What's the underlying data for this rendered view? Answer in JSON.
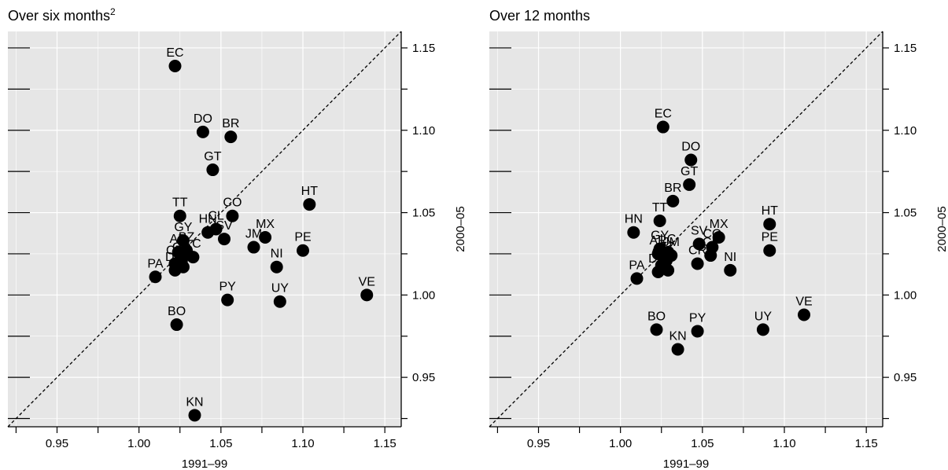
{
  "chart_data": [
    {
      "type": "scatter",
      "title": "Over six months",
      "title_superscript": "2",
      "xlabel": "1991–99",
      "ylabel": "2000–05",
      "xlim": [
        0.92,
        1.16
      ],
      "ylim": [
        0.92,
        1.16
      ],
      "xticks": [
        "0.95",
        "1.00",
        "1.05",
        "1.10",
        "1.15"
      ],
      "yticks": [
        "0.95",
        "1.00",
        "1.05",
        "1.10",
        "1.15"
      ],
      "grid": true,
      "diagonal": "dashed 45-degree line",
      "background": "#e6e6e6",
      "point_color": "#000000",
      "points": [
        {
          "label": "EC",
          "x": 1.022,
          "y": 1.139
        },
        {
          "label": "DO",
          "x": 1.039,
          "y": 1.099
        },
        {
          "label": "BR",
          "x": 1.056,
          "y": 1.096
        },
        {
          "label": "GT",
          "x": 1.045,
          "y": 1.076
        },
        {
          "label": "TT",
          "x": 1.025,
          "y": 1.048
        },
        {
          "label": "CO",
          "x": 1.057,
          "y": 1.048
        },
        {
          "label": "HT",
          "x": 1.104,
          "y": 1.055
        },
        {
          "label": "CL",
          "x": 1.047,
          "y": 1.04
        },
        {
          "label": "HN",
          "x": 1.042,
          "y": 1.038
        },
        {
          "label": "SV",
          "x": 1.052,
          "y": 1.034
        },
        {
          "label": "MX",
          "x": 1.077,
          "y": 1.035
        },
        {
          "label": "JM",
          "x": 1.07,
          "y": 1.029
        },
        {
          "label": "PE",
          "x": 1.1,
          "y": 1.027
        },
        {
          "label": "NI",
          "x": 1.084,
          "y": 1.017
        },
        {
          "label": "GY",
          "x": 1.027,
          "y": 1.033
        },
        {
          "label": "AR",
          "x": 1.024,
          "y": 1.026
        },
        {
          "label": "BZ",
          "x": 1.029,
          "y": 1.027
        },
        {
          "label": "LC",
          "x": 1.033,
          "y": 1.023
        },
        {
          "label": "CR",
          "x": 1.022,
          "y": 1.019
        },
        {
          "label": "GD",
          "x": 1.026,
          "y": 1.021
        },
        {
          "label": "PA",
          "x": 1.01,
          "y": 1.011
        },
        {
          "label": "DM",
          "x": 1.022,
          "y": 1.015
        },
        {
          "label": "VC",
          "x": 1.027,
          "y": 1.017
        },
        {
          "label": "PY",
          "x": 1.054,
          "y": 0.997
        },
        {
          "label": "UY",
          "x": 1.086,
          "y": 0.996
        },
        {
          "label": "VE",
          "x": 1.139,
          "y": 1.0
        },
        {
          "label": "BO",
          "x": 1.023,
          "y": 0.982
        },
        {
          "label": "KN",
          "x": 1.034,
          "y": 0.927
        }
      ]
    },
    {
      "type": "scatter",
      "title": "Over 12 months",
      "xlabel": "1991–99",
      "ylabel": "2000–05",
      "xlim": [
        0.92,
        1.16
      ],
      "ylim": [
        0.92,
        1.16
      ],
      "xticks": [
        "0.95",
        "1.00",
        "1.05",
        "1.10",
        "1.15"
      ],
      "yticks": [
        "0.95",
        "1.00",
        "1.05",
        "1.10",
        "1.15"
      ],
      "grid": true,
      "diagonal": "dashed 45-degree line",
      "background": "#e6e6e6",
      "point_color": "#000000",
      "points": [
        {
          "label": "EC",
          "x": 1.026,
          "y": 1.102
        },
        {
          "label": "DO",
          "x": 1.043,
          "y": 1.082
        },
        {
          "label": "GT",
          "x": 1.042,
          "y": 1.067
        },
        {
          "label": "BR",
          "x": 1.032,
          "y": 1.057
        },
        {
          "label": "TT",
          "x": 1.024,
          "y": 1.045
        },
        {
          "label": "HN",
          "x": 1.008,
          "y": 1.038
        },
        {
          "label": "HT",
          "x": 1.091,
          "y": 1.043
        },
        {
          "label": "MX",
          "x": 1.06,
          "y": 1.035
        },
        {
          "label": "SV",
          "x": 1.048,
          "y": 1.031
        },
        {
          "label": "CO",
          "x": 1.056,
          "y": 1.029
        },
        {
          "label": "CL",
          "x": 1.055,
          "y": 1.024
        },
        {
          "label": "PE",
          "x": 1.091,
          "y": 1.027
        },
        {
          "label": "GY",
          "x": 1.024,
          "y": 1.028
        },
        {
          "label": "AR",
          "x": 1.023,
          "y": 1.025
        },
        {
          "label": "LC",
          "x": 1.029,
          "y": 1.026
        },
        {
          "label": "JM",
          "x": 1.031,
          "y": 1.024
        },
        {
          "label": "BZ",
          "x": 1.028,
          "y": 1.021
        },
        {
          "label": "CR",
          "x": 1.047,
          "y": 1.019
        },
        {
          "label": "GD",
          "x": 1.025,
          "y": 1.018
        },
        {
          "label": "VC",
          "x": 1.029,
          "y": 1.015
        },
        {
          "label": "DM",
          "x": 1.023,
          "y": 1.014
        },
        {
          "label": "NI",
          "x": 1.067,
          "y": 1.015
        },
        {
          "label": "PA",
          "x": 1.01,
          "y": 1.01
        },
        {
          "label": "VE",
          "x": 1.112,
          "y": 0.988
        },
        {
          "label": "UY",
          "x": 1.087,
          "y": 0.979
        },
        {
          "label": "BO",
          "x": 1.022,
          "y": 0.979
        },
        {
          "label": "PY",
          "x": 1.047,
          "y": 0.978
        },
        {
          "label": "KN",
          "x": 1.035,
          "y": 0.967
        }
      ]
    }
  ]
}
